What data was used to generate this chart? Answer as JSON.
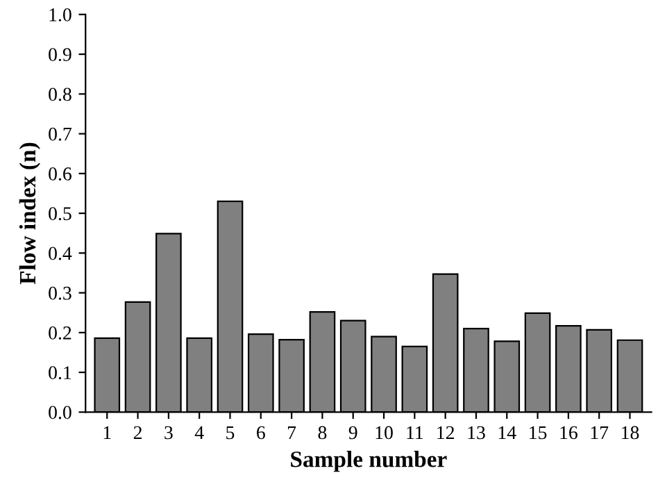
{
  "chart_data": {
    "type": "bar",
    "xlabel": "Sample number",
    "ylabel": "Flow index (n)",
    "categories": [
      "1",
      "2",
      "3",
      "4",
      "5",
      "6",
      "7",
      "8",
      "9",
      "10",
      "11",
      "12",
      "13",
      "14",
      "15",
      "16",
      "17",
      "18"
    ],
    "values": [
      0.186,
      0.277,
      0.449,
      0.186,
      0.53,
      0.196,
      0.182,
      0.252,
      0.23,
      0.19,
      0.165,
      0.347,
      0.21,
      0.178,
      0.249,
      0.217,
      0.207,
      0.181
    ],
    "color": "#808080",
    "ylim": [
      0,
      1.0
    ],
    "yticks": [
      {
        "value": 0,
        "label": "0.0"
      },
      0.1,
      0.2,
      0.3,
      0.4,
      0.5,
      0.6,
      0.7,
      0.8,
      0.9,
      {
        "value": 1,
        "label": "1.0"
      }
    ],
    "grid": false
  }
}
